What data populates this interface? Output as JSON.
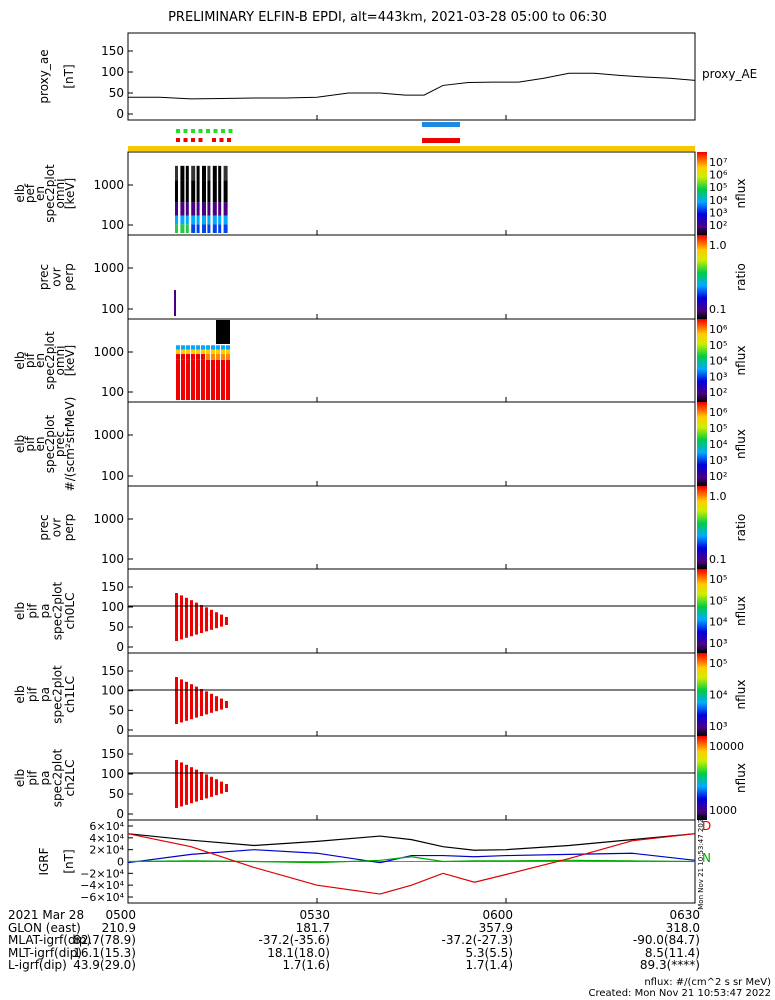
{
  "title": "PRELIMINARY ELFIN-B EPDI, alt=443km, 2021-03-28 05:00 to 06:30",
  "chart_data": {
    "type": "line",
    "time_range": [
      "05:00",
      "06:30"
    ],
    "panels": [
      {
        "id": "proxy_ae",
        "ylabel": [
          "proxy_ae",
          "[nT]"
        ],
        "series_name": "proxy_AE",
        "ylim": [
          0,
          150
        ],
        "yticks": [
          "0",
          "50",
          "100",
          "150"
        ],
        "x_min": [
          0,
          5,
          10,
          15,
          20,
          25,
          30,
          35,
          40,
          44,
          47,
          50,
          54,
          58,
          62,
          66,
          70,
          74,
          78,
          82,
          86,
          90
        ],
        "values": [
          40,
          40,
          36,
          37,
          38,
          38,
          40,
          50,
          50,
          45,
          45,
          68,
          75,
          76,
          76,
          85,
          97,
          97,
          92,
          88,
          85,
          80
        ]
      },
      {
        "id": "elb_pef_en_spec2plot_omni",
        "ylabel": [
          "elb",
          "pef",
          "en",
          "spec2plot",
          "omni",
          "[keV]"
        ],
        "yticks": [
          "100",
          "1000"
        ],
        "colorbar": {
          "label": "nflux",
          "ticks": [
            "10⁷",
            "10⁶",
            "10⁵",
            "10⁴",
            "10³",
            "10²"
          ]
        }
      },
      {
        "id": "prec_ovr_perp_e",
        "ylabel": [
          "prec",
          "ovr",
          "perp"
        ],
        "yticks": [
          "100",
          "1000"
        ],
        "colorbar": {
          "label": "ratio",
          "ticks": [
            "1.0",
            "0.1"
          ]
        }
      },
      {
        "id": "elb_pif_en_spec2plot_omni",
        "ylabel": [
          "elb",
          "pif",
          "en",
          "spec2plot",
          "omni",
          "[keV]"
        ],
        "yticks": [
          "100",
          "1000"
        ],
        "colorbar": {
          "label": "nflux",
          "ticks": [
            "10⁶",
            "10⁵",
            "10⁴",
            "10³",
            "10²"
          ]
        }
      },
      {
        "id": "elb_pif_en_spec2plot_prec",
        "ylabel": [
          "elb",
          "pif",
          "en",
          "spec2plot",
          "prec",
          "#/(scm²strMeV)"
        ],
        "yticks": [
          "100",
          "1000"
        ],
        "colorbar": {
          "label": "nflux",
          "ticks": [
            "10⁶",
            "10⁵",
            "10⁴",
            "10³",
            "10²"
          ]
        }
      },
      {
        "id": "prec_ovr_perp_i",
        "ylabel": [
          "prec",
          "ovr",
          "perp"
        ],
        "yticks": [
          "100",
          "1000"
        ],
        "colorbar": {
          "label": "ratio",
          "ticks": [
            "1.0",
            "0.1"
          ]
        }
      },
      {
        "id": "elb_pif_pa_spec2plot_ch0LC",
        "ylabel": [
          "elb",
          "pif",
          "pa",
          "spec2plot",
          "ch0LC"
        ],
        "yticks": [
          "0",
          "50",
          "100",
          "150"
        ],
        "colorbar": {
          "label": "nflux",
          "ticks": [
            "10⁵",
            "10⁵",
            "10⁴",
            "10³"
          ]
        }
      },
      {
        "id": "elb_pif_pa_spec2plot_ch1LC",
        "ylabel": [
          "elb",
          "pif",
          "pa",
          "spec2plot",
          "ch1LC"
        ],
        "yticks": [
          "0",
          "50",
          "100",
          "150"
        ],
        "colorbar": {
          "label": "nflux",
          "ticks": [
            "10⁵",
            "10⁴",
            "10³"
          ]
        }
      },
      {
        "id": "elb_pif_pa_spec2plot_ch2LC",
        "ylabel": [
          "elb",
          "pif",
          "pa",
          "spec2plot",
          "ch2LC"
        ],
        "yticks": [
          "0",
          "50",
          "100",
          "150"
        ],
        "colorbar": {
          "label": "nflux",
          "ticks": [
            "10000",
            "1000"
          ]
        }
      },
      {
        "id": "igrf",
        "ylabel": [
          "IGRF",
          "[nT]"
        ],
        "yticks": [
          "6×10⁴",
          "4×10⁴",
          "2×10⁴",
          "0",
          "−2×10⁴",
          "−4×10⁴",
          "−6×10⁴"
        ],
        "ylim": [
          -60000,
          60000
        ],
        "legend": [
          "D",
          "N"
        ],
        "side_text": "Mon Nov 21 10:53:47 2022",
        "x_min": [
          0,
          10,
          20,
          30,
          40,
          45,
          50,
          55,
          60,
          70,
          80,
          90
        ],
        "series": [
          {
            "name": "total",
            "color": "#000000",
            "values": [
              47000,
              36000,
              27000,
              34000,
              43000,
              37000,
              25000,
              19000,
              20000,
              27000,
              37000,
              47000
            ]
          },
          {
            "name": "north",
            "color": "#0000cc",
            "values": [
              -2000,
              12000,
              20000,
              14000,
              -2000,
              10000,
              10000,
              8000,
              10000,
              12000,
              14000,
              2000
            ]
          },
          {
            "name": "east",
            "color": "#00aa00",
            "values": [
              0,
              1000,
              0,
              -2000,
              2000,
              8000,
              0,
              1000,
              1000,
              2000,
              1000,
              0
            ]
          },
          {
            "name": "down",
            "color": "#dd0000",
            "values": [
              47000,
              25000,
              -10000,
              -40000,
              -55000,
              -40000,
              -20000,
              -35000,
              -22000,
              5000,
              35000,
              47000
            ]
          }
        ]
      }
    ]
  },
  "series_label": "proxy_AE",
  "footer": {
    "rows": [
      {
        "label": "2021 Mar 28",
        "values": [
          "0500",
          "0530",
          "0600",
          "0630"
        ]
      },
      {
        "label": "GLON (east)",
        "values": [
          "210.9",
          "181.7",
          "357.9",
          "318.0"
        ]
      },
      {
        "label": "MLAT-igrf(dip)",
        "values": [
          "82.7(78.9)",
          "-37.2(-35.6)",
          "-37.2(-27.3)",
          "-90.0(84.7)"
        ]
      },
      {
        "label": "MLT-igrf(dip)",
        "values": [
          "16.1(15.3)",
          "18.1(18.0)",
          "5.3(5.5)",
          "8.5(11.4)"
        ]
      },
      {
        "label": "L-igrf(dip)",
        "values": [
          "43.9(29.0)",
          "1.7(1.6)",
          "1.7(1.4)",
          "89.3(****)"
        ]
      }
    ],
    "units_note": "nflux: #/(cm^2 s sr MeV)",
    "created": "Created: Mon Nov 21 10:53:47 2022"
  }
}
